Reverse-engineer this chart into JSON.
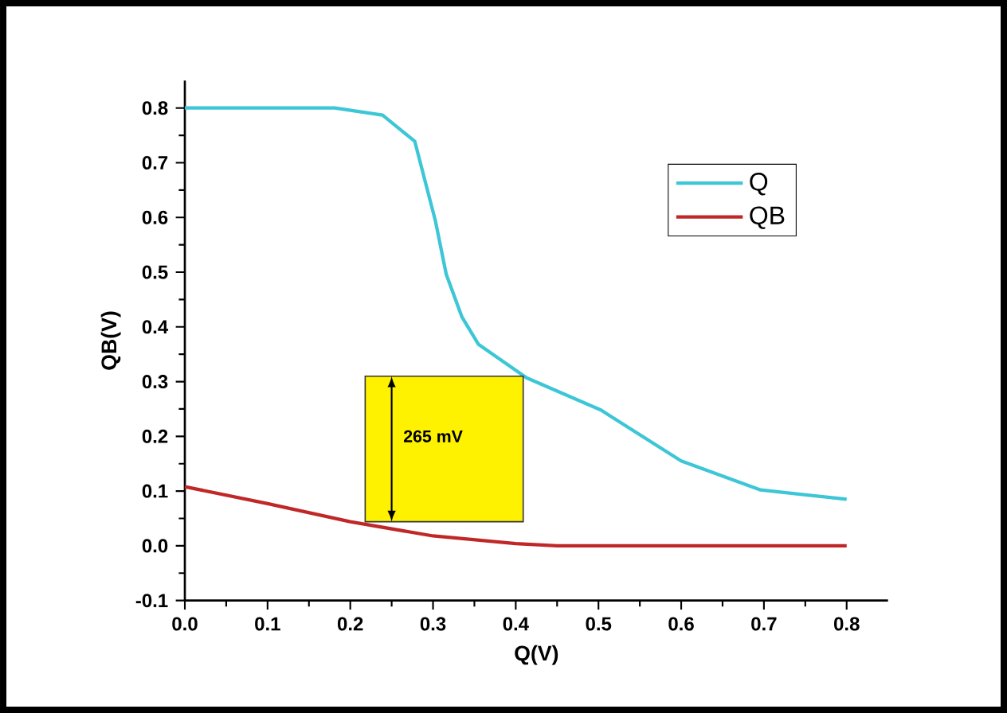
{
  "chart_data": {
    "type": "line",
    "xlabel": "Q(V)",
    "ylabel": "QB(V)",
    "xlim": [
      0,
      0.85
    ],
    "ylim": [
      -0.1,
      0.85
    ],
    "xticks": [
      {
        "value": 0,
        "label": "0.0"
      },
      0.1,
      0.2,
      0.3,
      0.4,
      0.5,
      0.6,
      0.7,
      0.8
    ],
    "yticks": [
      -0.1,
      {
        "value": 0,
        "label": "0.0"
      },
      0.1,
      0.2,
      0.3,
      0.4,
      0.5,
      0.6,
      0.7,
      0.8
    ],
    "grid": false,
    "legend": "top right",
    "marker": "none",
    "line_style": "solid",
    "series": [
      {
        "name": "Q",
        "color": "#3cc6d6",
        "x": [
          0,
          0.1,
          0.181,
          0.239,
          0.278,
          0.303,
          0.316,
          0.335,
          0.355,
          0.413,
          0.503,
          0.6,
          0.696,
          0.8
        ],
        "values": [
          0.8,
          0.8,
          0.8,
          0.787,
          0.739,
          0.593,
          0.496,
          0.418,
          0.368,
          0.307,
          0.248,
          0.155,
          0.102,
          0.085
        ]
      },
      {
        "name": "QB",
        "color": "#c02828",
        "x": [
          0,
          0.1,
          0.2,
          0.3,
          0.4,
          0.45,
          0.8
        ],
        "values": [
          0.108,
          0.077,
          0.044,
          0.018,
          0.004,
          0.0,
          0.0
        ]
      }
    ],
    "annotations": [
      "265 mV"
    ]
  }
}
